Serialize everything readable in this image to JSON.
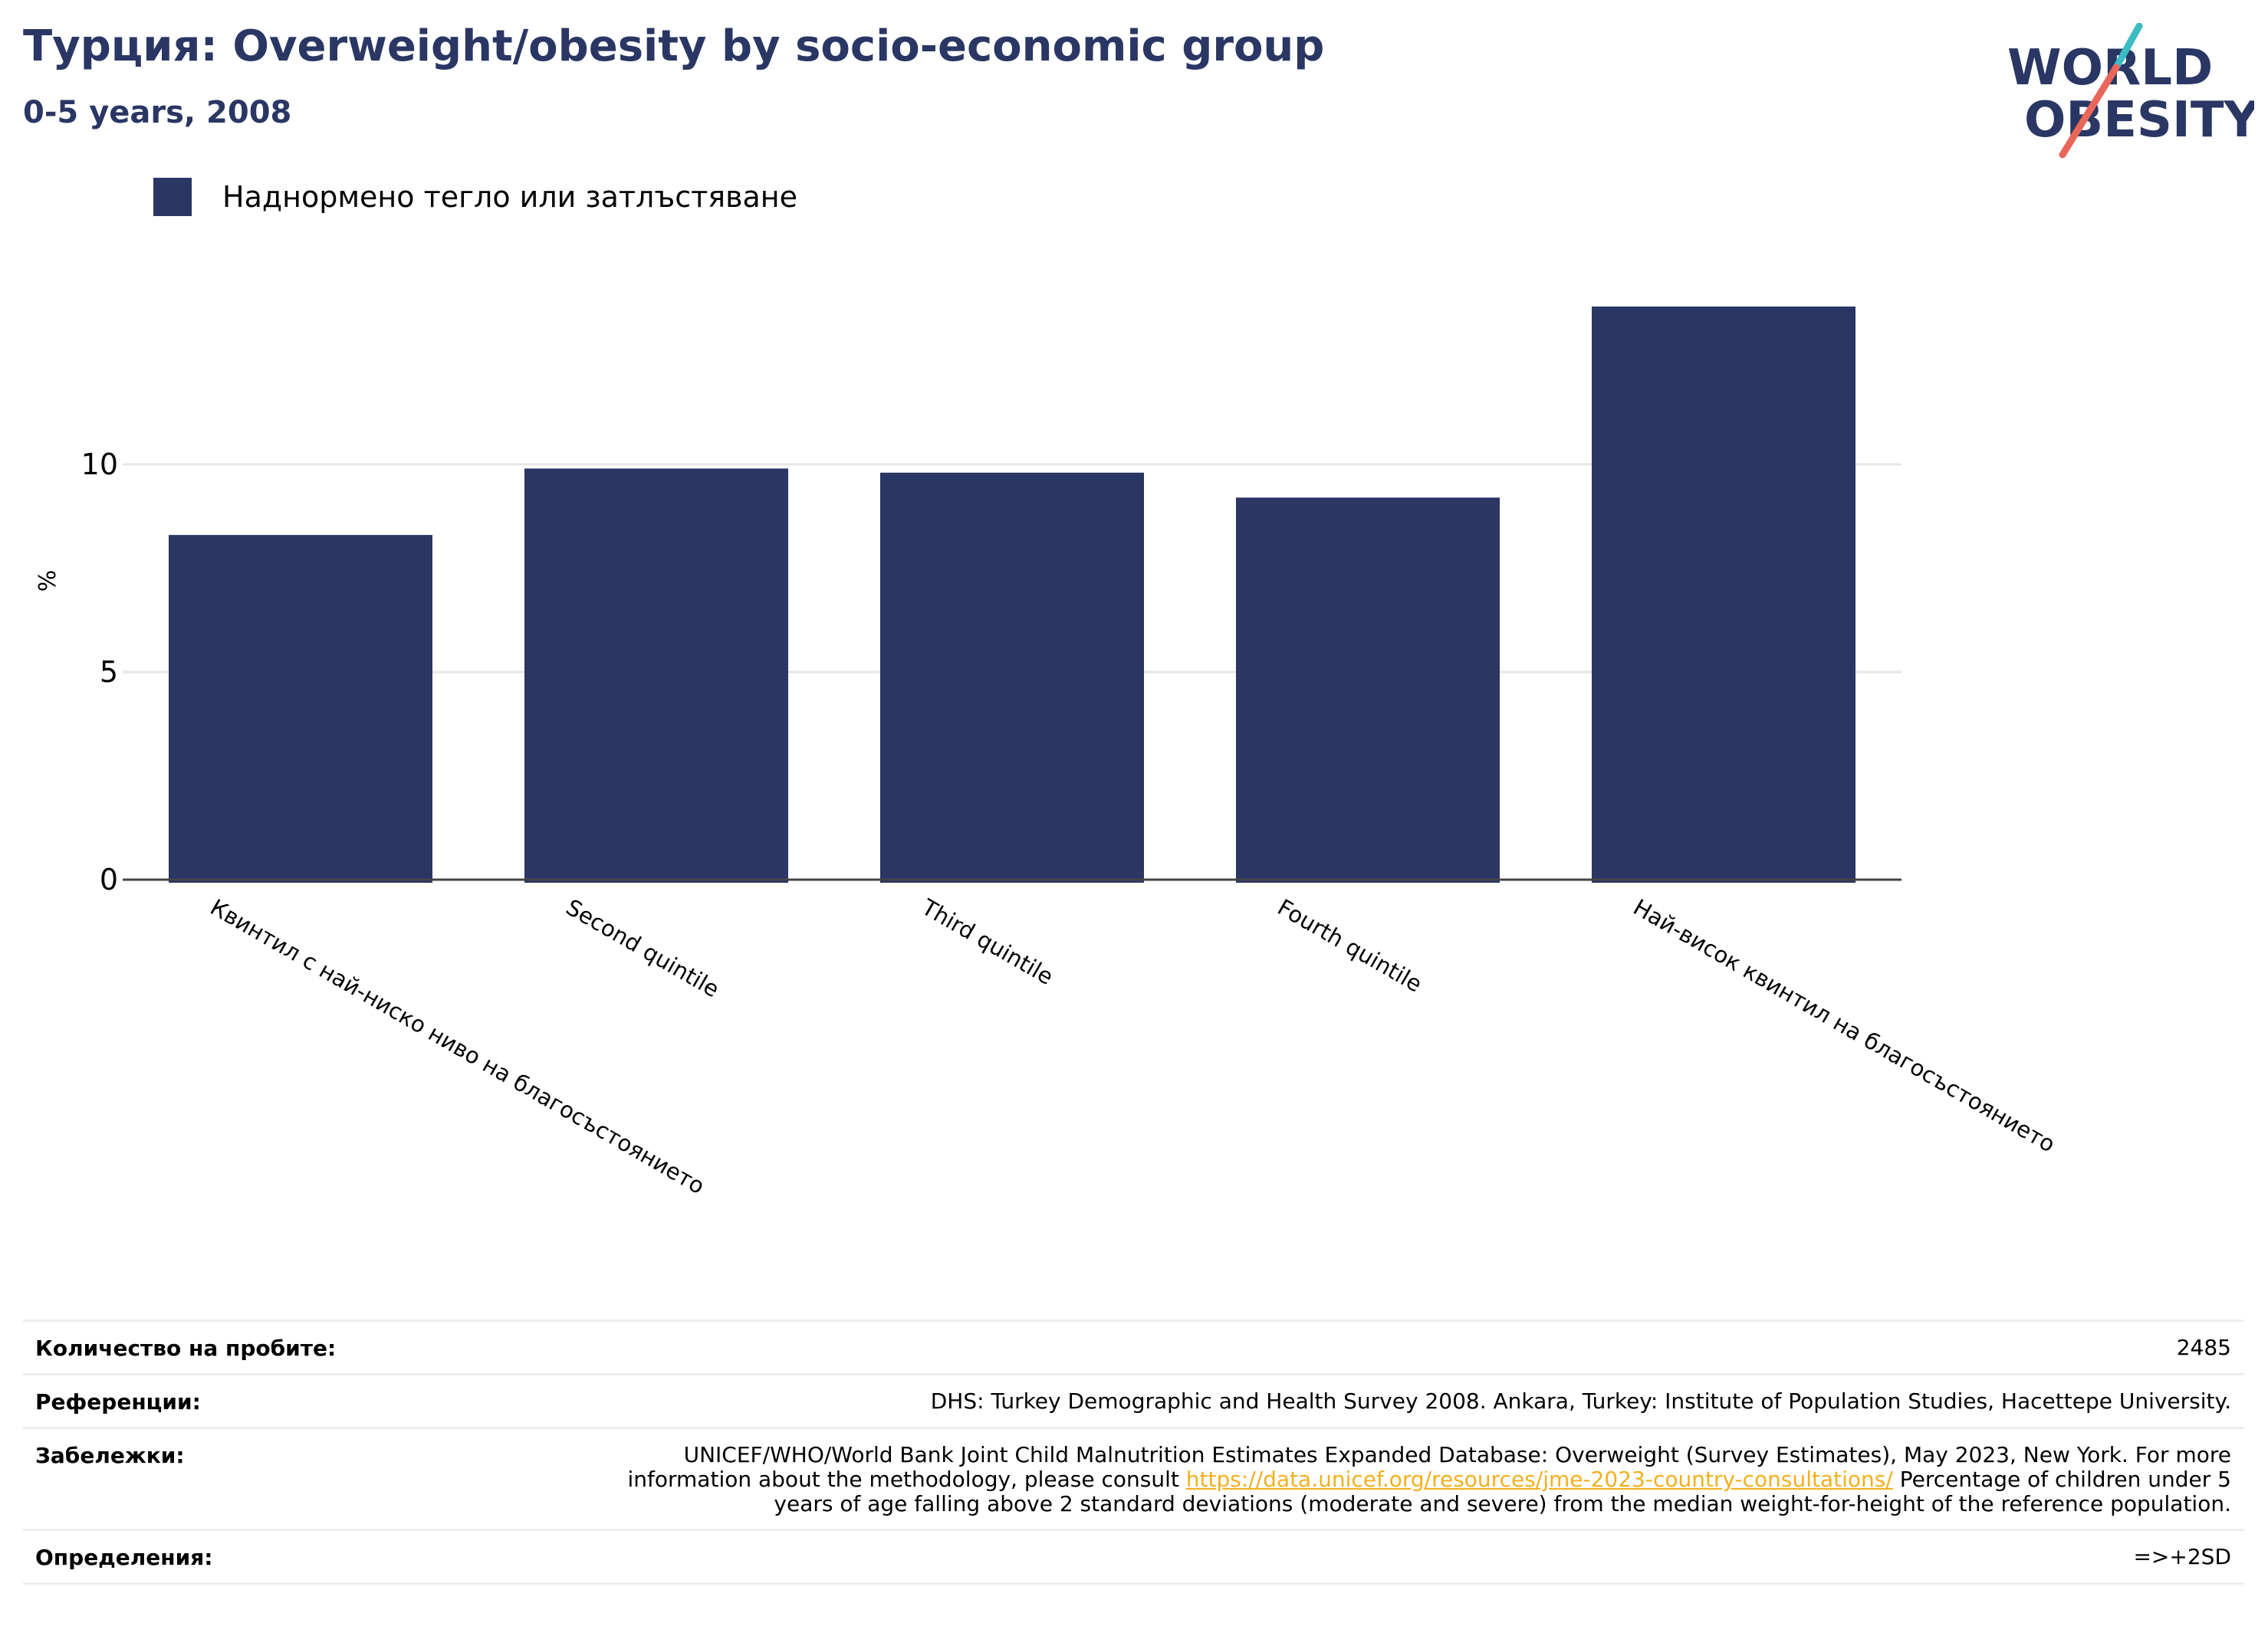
{
  "header": {
    "title": "Турция: Overweight/obesity by socio-economic group",
    "subtitle": "0-5 years, 2008"
  },
  "logo": {
    "line1": "WORLD",
    "line2": "OBESITY",
    "colors": {
      "text": "#2a3663",
      "slash_top": "#3cbcc3",
      "slash_bottom": "#e8675a"
    }
  },
  "legend": {
    "label": "Наднормено тегло или затлъстяване",
    "color": "#2a3663"
  },
  "chart_data": {
    "type": "bar",
    "categories": [
      "Квинтил с най-ниско ниво на благосъстоянието",
      "Second quintile",
      "Third quintile",
      "Fourth quintile",
      "Най-висок квинтил на благосъстоянието"
    ],
    "series": [
      {
        "name": "Наднормено тегло или затлъстяване",
        "values": [
          8.3,
          9.9,
          9.8,
          9.2,
          13.8
        ],
        "color": "#2a3663"
      }
    ],
    "ylabel": "%",
    "yticks": [
      0,
      5,
      10
    ],
    "ylim": [
      0,
      14.5
    ],
    "grid": true,
    "legend_position": "top-left"
  },
  "meta": {
    "rows": [
      {
        "key": "Количество на пробите:",
        "value": "2485"
      },
      {
        "key": "Референции:",
        "value": "DHS: Turkey Demographic and Health Survey 2008. Ankara, Turkey: Institute of Population Studies, Hacettepe University."
      },
      {
        "key": "Забележки:",
        "value_before": "UNICEF/WHO/World Bank Joint Child Malnutrition Estimates Expanded Database: Overweight (Survey Estimates), May 2023, New York. For more information about the methodology, please consult ",
        "link": "https://data.unicef.org/resources/jme-2023-country-consultations/",
        "value_after": " Percentage of children under 5 years of age falling above 2 standard deviations (moderate and severe) from the median weight-for-height of the reference population."
      },
      {
        "key": "Определения:",
        "value": "=>+2SD"
      }
    ]
  }
}
